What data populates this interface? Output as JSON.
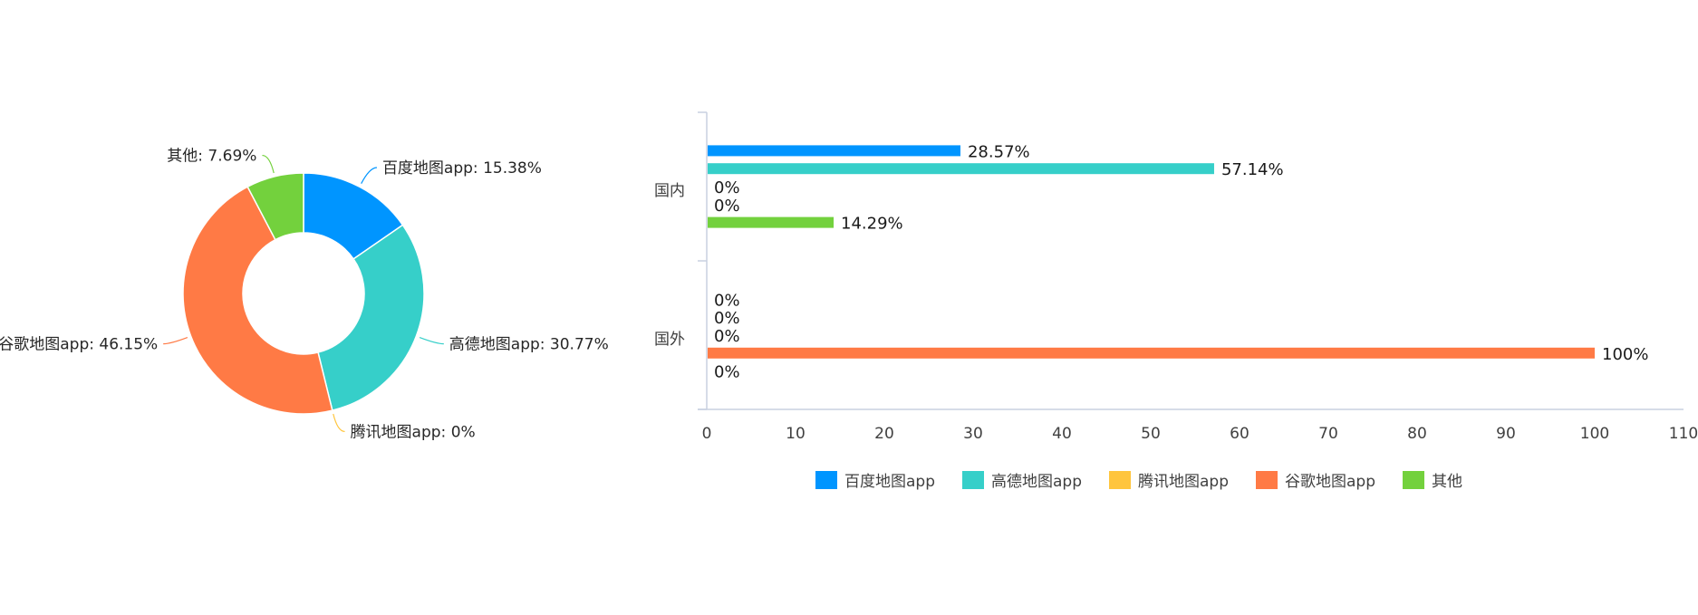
{
  "chart_data": [
    {
      "type": "pie",
      "variant": "donut",
      "categories": [
        "百度地图app",
        "高德地图app",
        "腾讯地图app",
        "谷歌地图app",
        "其他"
      ],
      "values": [
        15.38,
        30.77,
        0,
        46.15,
        7.69
      ],
      "labels": [
        "百度地图app: 15.38%",
        "高德地图app: 30.77%",
        "腾讯地图app: 0%",
        "谷歌地图app: 46.15%",
        "其他: 7.69%"
      ],
      "colors": [
        "#0095ff",
        "#36cfc9",
        "#ffc53d",
        "#ff7a45",
        "#73d13d"
      ]
    },
    {
      "type": "bar",
      "orientation": "horizontal",
      "categories": [
        "国内",
        "国外"
      ],
      "series": [
        {
          "name": "百度地图app",
          "values": [
            28.57,
            0
          ],
          "labels": [
            "28.57%",
            "0%"
          ],
          "color": "#0095ff"
        },
        {
          "name": "高德地图app",
          "values": [
            57.14,
            0
          ],
          "labels": [
            "57.14%",
            "0%"
          ],
          "color": "#36cfc9"
        },
        {
          "name": "腾讯地图app",
          "values": [
            0,
            0
          ],
          "labels": [
            "0%",
            "0%"
          ],
          "color": "#ffc53d"
        },
        {
          "name": "谷歌地图app",
          "values": [
            0,
            100
          ],
          "labels": [
            "0%",
            "100%"
          ],
          "color": "#ff7a45"
        },
        {
          "name": "其他",
          "values": [
            14.29,
            0
          ],
          "labels": [
            "14.29%",
            "0%"
          ],
          "color": "#73d13d"
        }
      ],
      "xlim": [
        0,
        110
      ],
      "xticks": [
        "0",
        "10",
        "20",
        "30",
        "40",
        "50",
        "60",
        "70",
        "80",
        "90",
        "100",
        "110"
      ],
      "grid": false,
      "legend": "bottom"
    }
  ]
}
